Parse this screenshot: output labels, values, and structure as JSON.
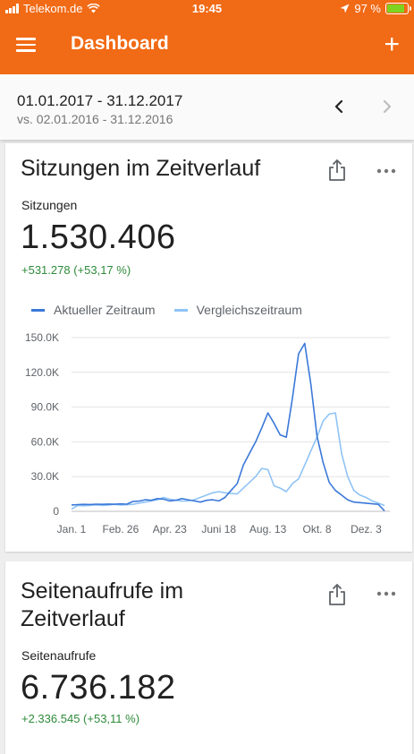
{
  "status_bar": {
    "carrier": "Telekom.de",
    "time": "19:45",
    "battery": "97 %",
    "battery_level": 0.97,
    "icons": [
      "signal-icon",
      "wifi-icon",
      "location-arrow-icon",
      "battery-icon"
    ]
  },
  "app_bar": {
    "title": "Dashboard",
    "menu_icon": "menu-icon",
    "add_icon": "plus-icon",
    "color": "#f16a15"
  },
  "date_range": {
    "current": "01.01.2017 - 31.12.2017",
    "comparison": "vs. 02.01.2016 - 31.12.2016",
    "prev_icon": "chevron-left-icon",
    "next_icon": "chevron-right-icon"
  },
  "cards": [
    {
      "title": "Sitzungen im Zeitverlauf",
      "metric_label": "Sitzungen",
      "metric_value": "1.530.406",
      "metric_change": "+531.278 (+53,17 %)",
      "share_icon": "share-icon",
      "more_icon": "more-horizontal-icon"
    },
    {
      "title_line1": "Seitenaufrufe im",
      "title_line2": "Zeitverlauf",
      "metric_label": "Seitenaufrufe",
      "metric_value": "6.736.182",
      "metric_change": "+2.336.545 (+53,11 %)",
      "share_icon": "share-icon",
      "more_icon": "more-horizontal-icon"
    }
  ],
  "colors": {
    "current": "#3b78d8",
    "comparison": "#8fc3f5",
    "positive": "#2e8b3a"
  },
  "chart_data": {
    "type": "line",
    "legend": [
      "Aktueller Zeitraum",
      "Vergleichszeitraum"
    ],
    "legend_position": "top-left",
    "grid": true,
    "ylim": [
      0,
      150000
    ],
    "yticks": [
      0,
      30000,
      60000,
      90000,
      120000,
      150000
    ],
    "ytick_labels": [
      "0",
      "30.0K",
      "60.0K",
      "90.0K",
      "120.0K",
      "150.0K"
    ],
    "xtick_labels": [
      "Jan. 1",
      "Feb. 26",
      "Apr. 23",
      "Juni 18",
      "Aug. 13",
      "Okt. 8",
      "Dez. 3"
    ],
    "xtick_weeks": [
      0,
      8,
      16,
      24,
      32,
      40,
      48
    ],
    "series": [
      {
        "name": "Aktueller Zeitraum",
        "color": "#3b78d8",
        "values": [
          5500,
          5800,
          6000,
          5900,
          6200,
          6000,
          6300,
          6100,
          6400,
          6200,
          8500,
          8800,
          10000,
          9500,
          11000,
          10500,
          9000,
          9600,
          11000,
          10000,
          9000,
          8000,
          9500,
          10000,
          9000,
          12000,
          18000,
          24000,
          40000,
          50000,
          60000,
          72000,
          85000,
          76000,
          66000,
          64000,
          98000,
          136000,
          145000,
          110000,
          65000,
          42000,
          25000,
          18000,
          14000,
          10000,
          8000,
          7500,
          7000,
          6500,
          6000,
          500
        ]
      },
      {
        "name": "Vergleichszeitraum",
        "color": "#8fc3f5",
        "values": [
          2000,
          5000,
          4800,
          5200,
          5600,
          5000,
          5500,
          6000,
          5400,
          5700,
          6000,
          7000,
          8000,
          9000,
          10000,
          12000,
          10500,
          9500,
          8800,
          9000,
          10000,
          12000,
          14000,
          16000,
          17000,
          16000,
          15500,
          15000,
          20000,
          25000,
          30000,
          37000,
          36000,
          22000,
          20000,
          17000,
          24000,
          28000,
          40000,
          52000,
          64000,
          78000,
          84000,
          85000,
          50000,
          30000,
          18000,
          14000,
          12000,
          9000,
          7000,
          5000
        ]
      }
    ]
  }
}
